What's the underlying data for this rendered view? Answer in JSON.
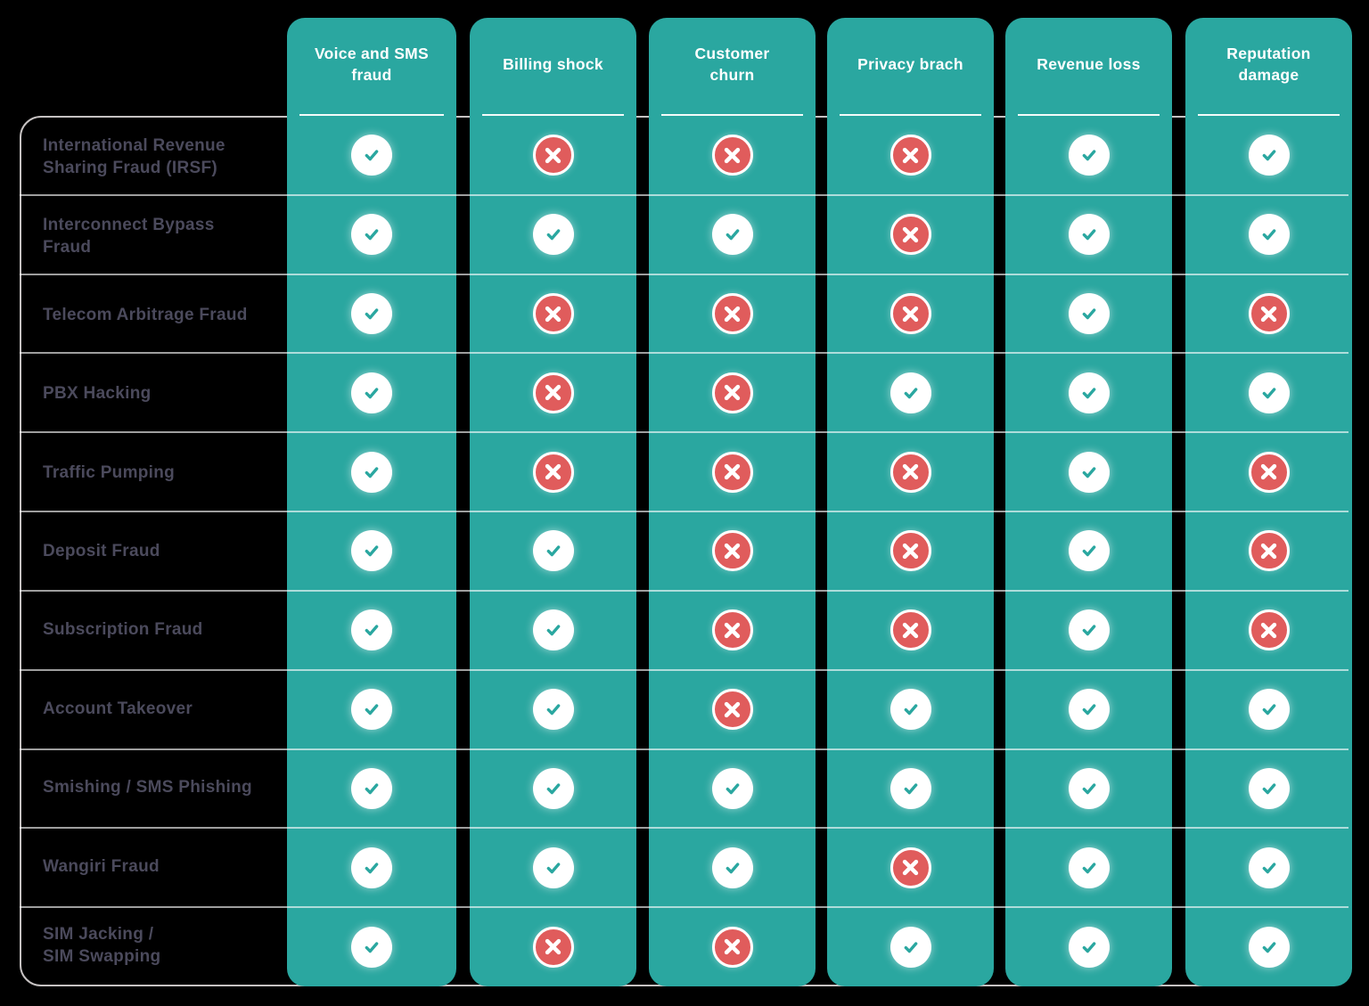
{
  "table": {
    "column_headers": [
      "Voice and SMS\nfraud",
      "Billing shock",
      "Customer\nchurn",
      "Privacy brach",
      "Revenue loss",
      "Reputation\ndamage"
    ],
    "rows": [
      {
        "label": "International Revenue\nSharing Fraud (IRSF)",
        "impacts": [
          true,
          false,
          false,
          false,
          true,
          true
        ]
      },
      {
        "label": "Interconnect Bypass\nFraud",
        "impacts": [
          true,
          true,
          true,
          false,
          true,
          true
        ]
      },
      {
        "label": "Telecom Arbitrage Fraud",
        "impacts": [
          true,
          false,
          false,
          false,
          true,
          false
        ]
      },
      {
        "label": "PBX Hacking",
        "impacts": [
          true,
          false,
          false,
          true,
          true,
          true
        ]
      },
      {
        "label": "Traffic Pumping",
        "impacts": [
          true,
          false,
          false,
          false,
          true,
          false
        ]
      },
      {
        "label": "Deposit Fraud",
        "impacts": [
          true,
          true,
          false,
          false,
          true,
          false
        ]
      },
      {
        "label": "Subscription Fraud",
        "impacts": [
          true,
          true,
          false,
          false,
          true,
          false
        ]
      },
      {
        "label": "Account Takeover",
        "impacts": [
          true,
          true,
          false,
          true,
          true,
          true
        ]
      },
      {
        "label": "Smishing / SMS Phishing",
        "impacts": [
          true,
          true,
          true,
          true,
          true,
          true
        ]
      },
      {
        "label": "Wangiri Fraud",
        "impacts": [
          true,
          true,
          true,
          false,
          true,
          true
        ]
      },
      {
        "label": "SIM Jacking /\nSIM Swapping",
        "impacts": [
          true,
          false,
          false,
          true,
          true,
          true
        ]
      }
    ]
  },
  "icons": {
    "positive": "check-icon",
    "negative": "cross-icon",
    "positive_glyph": "✓",
    "negative_glyph": "✕"
  },
  "colors": {
    "background": "#000000",
    "column_teal": "#2AA7A0",
    "cross_red": "#E05C5C",
    "row_label_text": "#4B4A5C",
    "header_text": "#FFFFFF",
    "divider": "rgba(255,255,255,0.62)",
    "panel_border": "rgba(233,228,228,0.85)"
  },
  "chart_data": {
    "type": "table",
    "title": "",
    "columns": [
      "Voice and SMS fraud",
      "Billing shock",
      "Customer churn",
      "Privacy brach",
      "Revenue loss",
      "Reputation damage"
    ],
    "rows": [
      "International Revenue Sharing Fraud (IRSF)",
      "Interconnect Bypass Fraud",
      "Telecom Arbitrage Fraud",
      "PBX Hacking",
      "Traffic Pumping",
      "Deposit Fraud",
      "Subscription Fraud",
      "Account Takeover",
      "Smishing / SMS Phishing",
      "Wangiri Fraud",
      "SIM Jacking / SIM Swapping"
    ],
    "matrix": [
      [
        true,
        false,
        false,
        false,
        true,
        true
      ],
      [
        true,
        true,
        true,
        false,
        true,
        true
      ],
      [
        true,
        false,
        false,
        false,
        true,
        false
      ],
      [
        true,
        false,
        false,
        true,
        true,
        true
      ],
      [
        true,
        false,
        false,
        false,
        true,
        false
      ],
      [
        true,
        true,
        false,
        false,
        true,
        false
      ],
      [
        true,
        true,
        false,
        false,
        true,
        false
      ],
      [
        true,
        true,
        false,
        true,
        true,
        true
      ],
      [
        true,
        true,
        true,
        true,
        true,
        true
      ],
      [
        true,
        true,
        true,
        false,
        true,
        true
      ],
      [
        true,
        false,
        false,
        true,
        true,
        true
      ]
    ],
    "cell_encoding": "true = white circle with teal check mark, false = coral circle with white cross"
  }
}
